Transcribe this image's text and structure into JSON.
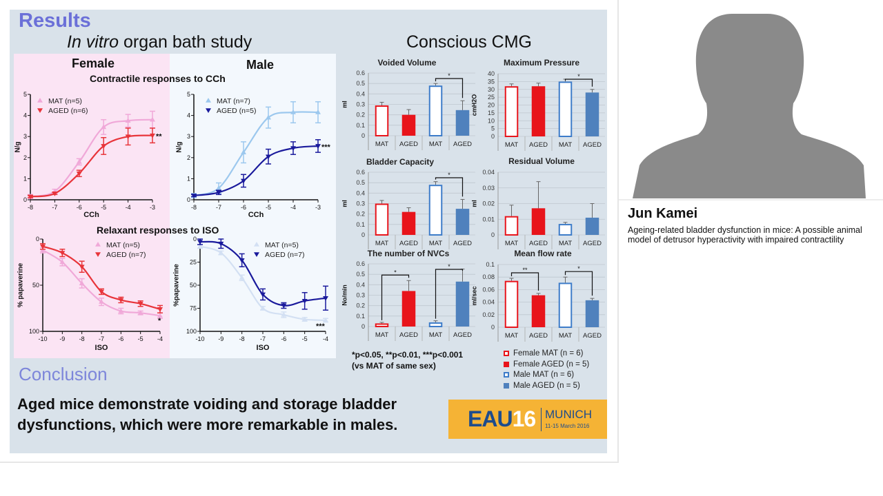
{
  "slide": {
    "results_heading": "Results",
    "in_vitro_title_italic": "In vitro",
    "in_vitro_title_rest": " organ bath study",
    "cmg_title": "Conscious CMG",
    "female_header": "Female",
    "male_header": "Male",
    "contractile_title": "Contractile responses to CCh",
    "relaxant_title": "Relaxant responses to ISO",
    "conclusion_heading": "Conclusion",
    "conclusion_line1": "Aged mice demonstrate voiding and storage bladder",
    "conclusion_line2": "dysfunctions, which were more remarkable in males.",
    "footnote_line1": "*p<0.05, **p<0.01, ***p<0.001",
    "footnote_line2": "(vs MAT of same sex)",
    "legend": [
      {
        "label": "Female MAT (n = 6)",
        "color": "#e8141b",
        "filled": false
      },
      {
        "label": "Female AGED (n = 5)",
        "color": "#e8141b",
        "filled": true
      },
      {
        "label": "Male MAT (n = 6)",
        "color": "#3d7cc9",
        "filled": false
      },
      {
        "label": "Male AGED (n = 5)",
        "color": "#4f81bd",
        "filled": true
      }
    ],
    "logo": {
      "eau": "EAU",
      "year": "16",
      "city": "MUNICH",
      "dates": "11-15 March 2016"
    }
  },
  "speaker": {
    "name": "Jun Kamei",
    "talk_title": "Ageing-related bladder dysfunction in mice: A possible animal model of detrusor hyperactivity with impaired contractility"
  },
  "chart_data": [
    {
      "id": "female-cch",
      "type": "line",
      "xlabel": "CCh",
      "ylabel": "N/g",
      "xlim": [
        -8,
        -3
      ],
      "ylim": [
        0,
        5
      ],
      "xticks": [
        -8,
        -7,
        -6,
        -5,
        -4,
        -3
      ],
      "yticks": [
        0,
        1,
        2,
        3,
        4,
        5
      ],
      "invert_y": false,
      "annotation": "**",
      "series": [
        {
          "name": "MAT (n=5)",
          "marker": "up",
          "color": "#f0a8d8",
          "x": [
            -8,
            -7,
            -6,
            -5,
            -4,
            -3
          ],
          "y": [
            0.15,
            0.4,
            1.8,
            3.45,
            3.75,
            3.8
          ],
          "err": [
            0.1,
            0.1,
            0.15,
            0.35,
            0.3,
            0.4
          ]
        },
        {
          "name": "AGED (n=6)",
          "marker": "down",
          "color": "#e8343a",
          "x": [
            -8,
            -7,
            -6,
            -5,
            -4,
            -3
          ],
          "y": [
            0.15,
            0.3,
            1.25,
            2.55,
            3.0,
            3.05
          ],
          "err": [
            0.05,
            0.05,
            0.15,
            0.4,
            0.4,
            0.35
          ]
        }
      ]
    },
    {
      "id": "male-cch",
      "type": "line",
      "xlabel": "CCh",
      "ylabel": "N/g",
      "xlim": [
        -8,
        -3
      ],
      "ylim": [
        0,
        5
      ],
      "xticks": [
        -8,
        -7,
        -6,
        -5,
        -4,
        -3
      ],
      "yticks": [
        0,
        1,
        2,
        3,
        4,
        5
      ],
      "invert_y": false,
      "annotation": "***",
      "series": [
        {
          "name": "MAT (n=7)",
          "marker": "up",
          "color": "#9cc8ee",
          "x": [
            -8,
            -7,
            -6,
            -5,
            -4,
            -3
          ],
          "y": [
            0.2,
            0.55,
            2.25,
            3.9,
            4.15,
            4.15
          ],
          "err": [
            0.1,
            0.25,
            0.5,
            0.5,
            0.5,
            0.5
          ]
        },
        {
          "name": "AGED (n=5)",
          "marker": "down",
          "color": "#1a1a9c",
          "x": [
            -8,
            -7,
            -6,
            -5,
            -4,
            -3
          ],
          "y": [
            0.2,
            0.35,
            0.9,
            2.05,
            2.45,
            2.55
          ],
          "err": [
            0.05,
            0.1,
            0.3,
            0.35,
            0.3,
            0.3
          ]
        }
      ]
    },
    {
      "id": "female-iso",
      "type": "line",
      "xlabel": "ISO",
      "ylabel": "% papaverine",
      "xlim": [
        -10,
        -4
      ],
      "ylim": [
        0,
        100
      ],
      "xticks": [
        -10,
        -9,
        -8,
        -7,
        -6,
        -5,
        -4
      ],
      "yticks": [
        0,
        50,
        100
      ],
      "invert_y": true,
      "annotation": "*",
      "series": [
        {
          "name": "MAT (n=5)",
          "marker": "up",
          "color": "#f0a8d8",
          "x": [
            -10,
            -9,
            -8,
            -7,
            -6,
            -5,
            -4
          ],
          "y": [
            12,
            25,
            48,
            68,
            78,
            80,
            83
          ],
          "err": [
            3,
            4,
            5,
            4,
            3,
            2,
            3
          ]
        },
        {
          "name": "AGED (n=7)",
          "marker": "down",
          "color": "#e8343a",
          "x": [
            -10,
            -9,
            -8,
            -7,
            -6,
            -5,
            -4
          ],
          "y": [
            8,
            15,
            30,
            57,
            66,
            70,
            76
          ],
          "err": [
            3,
            4,
            6,
            3,
            3,
            3,
            4
          ]
        }
      ]
    },
    {
      "id": "male-iso",
      "type": "line",
      "xlabel": "ISO",
      "ylabel": "%papaverine",
      "xlim": [
        -10,
        -4
      ],
      "ylim": [
        0,
        100
      ],
      "xticks": [
        -10,
        -9,
        -8,
        -7,
        -6,
        -5,
        -4
      ],
      "yticks": [
        0,
        25,
        50,
        75,
        100
      ],
      "invert_y": true,
      "annotation": "***",
      "series": [
        {
          "name": "MAT (n=5)",
          "marker": "up",
          "color": "#d3e0f3",
          "x": [
            -10,
            -9,
            -8,
            -7,
            -6,
            -5,
            -4
          ],
          "y": [
            8,
            15,
            42,
            75,
            82,
            87,
            88
          ],
          "err": [
            2,
            2,
            3,
            2,
            3,
            2,
            2
          ]
        },
        {
          "name": "AGED (n=7)",
          "marker": "down",
          "color": "#1a1a9c",
          "x": [
            -10,
            -9,
            -8,
            -7,
            -6,
            -5,
            -4
          ],
          "y": [
            3,
            5,
            23,
            60,
            72,
            67,
            64
          ],
          "err": [
            3,
            5,
            7,
            6,
            3,
            9,
            13
          ]
        }
      ]
    },
    {
      "id": "voided-volume",
      "type": "bar",
      "title": "Voided Volume",
      "ylabel": "ml",
      "categories": [
        "MAT",
        "AGED",
        "MAT",
        "AGED"
      ],
      "values": [
        0.29,
        0.2,
        0.48,
        0.245
      ],
      "err": [
        0.03,
        0.05,
        0.02,
        0.09
      ],
      "ylim": [
        0,
        0.6
      ],
      "yticks": [
        "0",
        "0.1",
        "0.2",
        "0.3",
        "0.4",
        "0.5",
        "0.6"
      ],
      "significance": [
        {
          "from": 2,
          "to": 3,
          "label": "*"
        }
      ]
    },
    {
      "id": "maximum-pressure",
      "type": "bar",
      "title": "Maximum Pressure",
      "ylabel": "cmH2O",
      "categories": [
        "MAT",
        "AGED",
        "MAT",
        "AGED"
      ],
      "values": [
        32,
        32,
        35,
        28
      ],
      "err": [
        1.5,
        2,
        1.5,
        2
      ],
      "ylim": [
        0,
        40
      ],
      "yticks": [
        "0",
        "5",
        "10",
        "15",
        "20",
        "25",
        "30",
        "35",
        "40"
      ],
      "significance": [
        {
          "from": 2,
          "to": 3,
          "label": "*"
        }
      ]
    },
    {
      "id": "bladder-capacity",
      "type": "bar",
      "title": "Bladder Capacity",
      "ylabel": "ml",
      "categories": [
        "MAT",
        "AGED",
        "MAT",
        "AGED"
      ],
      "values": [
        0.3,
        0.22,
        0.48,
        0.25
      ],
      "err": [
        0.03,
        0.04,
        0.03,
        0.09
      ],
      "ylim": [
        0,
        0.6
      ],
      "yticks": [
        "0",
        "0.1",
        "0.2",
        "0.3",
        "0.4",
        "0.5",
        "0.6"
      ],
      "significance": [
        {
          "from": 2,
          "to": 3,
          "label": "*"
        }
      ]
    },
    {
      "id": "residual-volume",
      "type": "bar",
      "title": "Residual Volume",
      "ylabel": "ml",
      "categories": [
        "MAT",
        "AGED",
        "MAT",
        "AGED"
      ],
      "values": [
        0.012,
        0.017,
        0.007,
        0.011
      ],
      "err": [
        0.007,
        0.017,
        0.001,
        0.009
      ],
      "ylim": [
        0,
        0.04
      ],
      "yticks": [
        "0",
        "0.01",
        "0.02",
        "0.03",
        "0.04"
      ],
      "significance": []
    },
    {
      "id": "number-of-nvcs",
      "type": "bar",
      "title": "The number of NVCs",
      "ylabel": "No/min",
      "categories": [
        "MAT",
        "AGED",
        "MAT",
        "AGED"
      ],
      "values": [
        0.03,
        0.34,
        0.04,
        0.43
      ],
      "err": [
        0.01,
        0.1,
        0.015,
        0.12
      ],
      "ylim": [
        0,
        0.6
      ],
      "yticks": [
        "0",
        "0.1",
        "0.2",
        "0.3",
        "0.4",
        "0.5",
        "0.6"
      ],
      "significance": [
        {
          "from": 0,
          "to": 1,
          "label": "*"
        },
        {
          "from": 2,
          "to": 3,
          "label": "*"
        }
      ]
    },
    {
      "id": "mean-flow-rate",
      "type": "bar",
      "title": "Mean flow rate",
      "ylabel": "ml/sec",
      "categories": [
        "MAT",
        "AGED",
        "MAT",
        "AGED"
      ],
      "values": [
        0.074,
        0.051,
        0.071,
        0.043
      ],
      "err": [
        0.004,
        0.003,
        0.009,
        0.003
      ],
      "ylim": [
        0,
        0.1
      ],
      "yticks": [
        "0",
        "0.02",
        "0.04",
        "0.06",
        "0.08",
        "0.1"
      ],
      "significance": [
        {
          "from": 0,
          "to": 1,
          "label": "**"
        },
        {
          "from": 2,
          "to": 3,
          "label": "*"
        }
      ]
    }
  ],
  "colors": {
    "female": "#e8141b",
    "male_outline": "#3d7cc9",
    "male_fill": "#4f81bd",
    "heading": "#6b70d8",
    "logo_bg": "#f5b335"
  }
}
